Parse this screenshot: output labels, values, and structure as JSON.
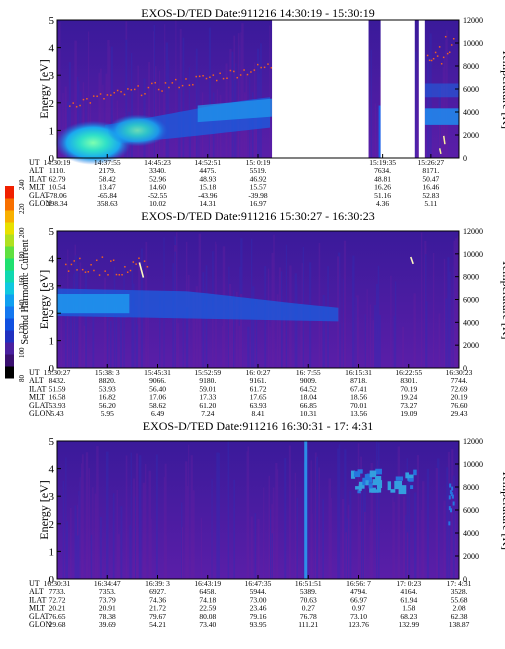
{
  "colorbar": {
    "label": "Second Harmonic Current",
    "ticks": [
      "80",
      "100",
      "120",
      "140",
      "160",
      "180",
      "200",
      "220",
      "240"
    ]
  },
  "chart_data": [
    {
      "type": "heatmap",
      "title": "EXOS-D/TED   Date:911216  14:30:19 - 15:30:19",
      "ylabel": "Energy [eV]",
      "y2label": "Temperature [K]",
      "ylim": [
        0,
        5
      ],
      "y2lim": [
        0,
        12000
      ],
      "yticks": [
        "0",
        "1",
        "2",
        "3",
        "4",
        "5"
      ],
      "y2ticks": [
        "0",
        "2000",
        "4000",
        "6000",
        "8000",
        "10000",
        "12000"
      ],
      "time_labels": [
        "14:30:19",
        "14:37:55",
        "14:45:23",
        "14:52:51",
        "15: 0:19",
        "15:19:35",
        "15:26:27"
      ],
      "time_fracs": [
        0.0,
        0.125,
        0.25,
        0.375,
        0.5,
        0.81,
        0.93
      ],
      "gaps": [
        [
          0.535,
          0.775
        ],
        [
          0.805,
          0.89
        ],
        [
          0.9,
          0.915
        ]
      ],
      "rows": [
        {
          "name": "UT",
          "values": [
            "14:30:19",
            "14:37:55",
            "14:45:23",
            "14:52:51",
            "15: 0:19",
            "15:19:35",
            "15:26:27"
          ]
        },
        {
          "name": "ALT",
          "values": [
            "1110.",
            "2179.",
            "3340.",
            "4475.",
            "5519.",
            "7634.",
            "8171."
          ]
        },
        {
          "name": "ILAT",
          "values": [
            "62.79",
            "58.42",
            "52.96",
            "48.93",
            "46.92",
            "48.81",
            "50.47"
          ]
        },
        {
          "name": "MLT",
          "values": [
            "10.54",
            "13.47",
            "14.60",
            "15.18",
            "15.57",
            "16.26",
            "16.46"
          ]
        },
        {
          "name": "GLAT",
          "values": [
            "-78.06",
            "-65.84",
            "-52.55",
            "-43.96",
            "-39.98",
            "51.16",
            "52.83"
          ]
        },
        {
          "name": "GLON",
          "values": [
            "298.34",
            "358.63",
            "10.02",
            "14.31",
            "16.97",
            "4.36",
            "5.11"
          ]
        }
      ]
    },
    {
      "type": "heatmap",
      "title": "EXOS-D/TED   Date:911216  15:30:27 - 16:30:23",
      "ylabel": "Energy [eV]",
      "y2label": "Temperature [K]",
      "ylim": [
        0,
        5
      ],
      "y2lim": [
        0,
        12000
      ],
      "yticks": [
        "0",
        "1",
        "2",
        "3",
        "4",
        "5"
      ],
      "y2ticks": [
        "0",
        "2000",
        "4000",
        "6000",
        "8000",
        "10000",
        "12000"
      ],
      "time_labels": [
        "15:30:27",
        "15:38: 3",
        "15:45:31",
        "15:52:59",
        "16: 0:27",
        "16: 7:55",
        "16:15:31",
        "16:22:55",
        "16:30:23"
      ],
      "time_fracs": [
        0.0,
        0.125,
        0.25,
        0.375,
        0.5,
        0.625,
        0.75,
        0.875,
        1.0
      ],
      "gaps": [],
      "rows": [
        {
          "name": "UT",
          "values": [
            "15:30:27",
            "15:38: 3",
            "15:45:31",
            "15:52:59",
            "16: 0:27",
            "16: 7:55",
            "16:15:31",
            "16:22:55",
            "16:30:23"
          ]
        },
        {
          "name": "ALT",
          "values": [
            "8432.",
            "8820.",
            "9066.",
            "9180.",
            "9161.",
            "9009.",
            "8718.",
            "8301.",
            "7744."
          ]
        },
        {
          "name": "ILAT",
          "values": [
            "51.59",
            "53.93",
            "56.40",
            "59.01",
            "61.72",
            "64.52",
            "67.41",
            "70.19",
            "72.69"
          ]
        },
        {
          "name": "MLT",
          "values": [
            "16.58",
            "16.82",
            "17.06",
            "17.33",
            "17.65",
            "18.04",
            "18.56",
            "19.24",
            "20.19"
          ]
        },
        {
          "name": "GLAT",
          "values": [
            "53.93",
            "56.20",
            "58.62",
            "61.20",
            "63.93",
            "66.85",
            "70.01",
            "73.27",
            "76.60"
          ]
        },
        {
          "name": "GLON",
          "values": [
            "5.43",
            "5.95",
            "6.49",
            "7.24",
            "8.41",
            "10.31",
            "13.56",
            "19.09",
            "29.43"
          ]
        }
      ]
    },
    {
      "type": "heatmap",
      "title": "EXOS-D/TED   Date:911216  16:30:31 - 17: 4:31",
      "ylabel": "Energy [eV]",
      "y2label": "Temperature [K]",
      "ylim": [
        0,
        5
      ],
      "y2lim": [
        0,
        12000
      ],
      "yticks": [
        "0",
        "1",
        "2",
        "3",
        "4",
        "5"
      ],
      "y2ticks": [
        "0",
        "2000",
        "4000",
        "6000",
        "8000",
        "10000",
        "12000"
      ],
      "time_labels": [
        "16:30:31",
        "16:34:47",
        "16:39: 3",
        "16:43:19",
        "16:47:35",
        "16:51:51",
        "16:56: 7",
        "17: 0:23",
        "17: 4:31"
      ],
      "time_fracs": [
        0.0,
        0.125,
        0.25,
        0.375,
        0.5,
        0.625,
        0.75,
        0.875,
        1.0
      ],
      "gaps": [],
      "rows": [
        {
          "name": "UT",
          "values": [
            "16:30:31",
            "16:34:47",
            "16:39: 3",
            "16:43:19",
            "16:47:35",
            "16:51:51",
            "16:56: 7",
            "17: 0:23",
            "17: 4:31"
          ]
        },
        {
          "name": "ALT",
          "values": [
            "7733.",
            "7353.",
            "6927.",
            "6458.",
            "5944.",
            "5389.",
            "4794.",
            "4164.",
            "3528."
          ]
        },
        {
          "name": "ILAT",
          "values": [
            "72.72",
            "73.79",
            "74.36",
            "74.18",
            "73.00",
            "70.63",
            "66.97",
            "61.94",
            "55.68"
          ]
        },
        {
          "name": "MLT",
          "values": [
            "20.21",
            "20.91",
            "21.72",
            "22.59",
            "23.46",
            "0.27",
            "0.97",
            "1.58",
            "2.08"
          ]
        },
        {
          "name": "GLAT",
          "values": [
            "76.65",
            "78.38",
            "79.67",
            "80.08",
            "79.16",
            "76.78",
            "73.10",
            "68.23",
            "62.38"
          ]
        },
        {
          "name": "GLON",
          "values": [
            "29.68",
            "39.69",
            "54.21",
            "73.40",
            "93.95",
            "111.21",
            "123.76",
            "132.99",
            "138.87"
          ]
        }
      ]
    }
  ]
}
